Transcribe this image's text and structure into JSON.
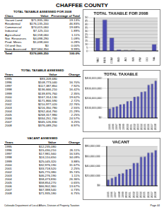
{
  "title": "CHAFFEE COUNTY",
  "tables": [
    {
      "title": "TOTAL TAXABLE ASSESSED FOR 2008",
      "columns": [
        "Class",
        "Value",
        "Percentage of Total"
      ],
      "rows": [
        [
          "Vacant Land",
          "$71,935,180",
          "19.13%"
        ],
        [
          "Residential",
          "$176,135,200",
          "46.83%"
        ],
        [
          "Commercial",
          "$74,015,060",
          "19.68%"
        ],
        [
          "Industrial",
          "$7,125,110",
          "1.89%"
        ],
        [
          "Agricultural",
          "$4,158,060",
          "1.11%"
        ],
        [
          "Nat. Resources",
          "$4,098,290",
          "1.09%"
        ],
        [
          "Prod. Mines",
          "$1,038,000",
          "0.28%"
        ],
        [
          "Oil and Gas",
          "$0",
          "0.00%"
        ],
        [
          "State Assessed",
          "$37,584,350",
          "9.99%"
        ],
        [
          "Total",
          "$376,089,250",
          "100.0%"
        ]
      ]
    },
    {
      "title": "TOTAL TAXABLE ASSESSED",
      "columns": [
        "Years",
        "Value",
        "Change"
      ],
      "rows": [
        [
          "1995",
          "$93,209,680",
          ""
        ],
        [
          "1996",
          "$108,773,040",
          "16.70%"
        ],
        [
          "1997",
          "$117,387,850",
          "7.92%"
        ],
        [
          "1998",
          "$136,666,210",
          "16.42%"
        ],
        [
          "1999",
          "$139,876,760",
          "2.35%"
        ],
        [
          "2000",
          "$167,314,130",
          "19.62%"
        ],
        [
          "2001",
          "$171,866,590",
          "2.72%"
        ],
        [
          "2002",
          "$210,977,020",
          "22.76%"
        ],
        [
          "2003",
          "$216,350,780",
          "2.55%"
        ],
        [
          "2004",
          "$262,404,760",
          "21.29%"
        ],
        [
          "2005",
          "$268,317,980",
          "2.25%"
        ],
        [
          "2006",
          "$334,251,740",
          "24.57%"
        ],
        [
          "2007",
          "$345,126,830",
          "3.25%"
        ],
        [
          "2008",
          "$376,089,250",
          "8.97%"
        ]
      ]
    },
    {
      "title": "VACANT ASSESSED",
      "columns": [
        "Years",
        "Value",
        "Change"
      ],
      "rows": [
        [
          "1995",
          "$12,235,080",
          ""
        ],
        [
          "1996",
          "$15,430,210",
          "26.11%"
        ],
        [
          "1997",
          "$17,981,560",
          "16.53%"
        ],
        [
          "1998",
          "$24,110,650",
          "34.09%"
        ],
        [
          "1999",
          "$25,045,320",
          "3.88%"
        ],
        [
          "2000",
          "$32,976,190",
          "31.67%"
        ],
        [
          "2001",
          "$33,718,520",
          "2.25%"
        ],
        [
          "2002",
          "$45,770,380",
          "35.74%"
        ],
        [
          "2003",
          "$46,276,190",
          "1.11%"
        ],
        [
          "2004",
          "$58,473,830",
          "26.36%"
        ],
        [
          "2005",
          "$58,854,270",
          "0.65%"
        ],
        [
          "2006",
          "$66,902,360",
          "13.67%"
        ],
        [
          "2007",
          "$67,388,540",
          "0.73%"
        ],
        [
          "2008",
          "$71,935,180",
          "6.75%"
        ]
      ]
    }
  ],
  "chart_data": [
    {
      "type": "bar",
      "title": "TOTAL TAXABLE FOR 2008",
      "categories": [
        "VAC",
        "RES",
        "COM",
        "IND",
        "AG",
        "NR",
        "PM",
        "OG",
        "SA"
      ],
      "values": [
        19.13,
        46.83,
        19.68,
        1.89,
        1.11,
        1.09,
        0.28,
        0,
        9.99
      ],
      "color": "#4b4bb0",
      "ylim": [
        0,
        50
      ],
      "yticks": [
        0,
        5,
        10,
        15,
        20,
        25,
        30,
        35,
        40,
        45,
        50
      ],
      "grid": true
    },
    {
      "type": "bar",
      "title": "TOTAL TAXABLE",
      "categories": [
        "1995",
        "1996",
        "1997",
        "1998",
        "1999",
        "2000",
        "2001",
        "2002",
        "2003",
        "2004",
        "2005",
        "2006",
        "2007",
        "2008"
      ],
      "values": [
        93209680,
        108773040,
        117387850,
        136666210,
        139876760,
        167314130,
        171866590,
        210977020,
        216350780,
        262404760,
        268317980,
        334251740,
        345126830,
        376089250
      ],
      "color": "#4b4bb0",
      "ylim": [
        0,
        400000000
      ],
      "yticks": [
        {
          "value": 0,
          "label": "$0"
        },
        {
          "value": 100000000,
          "label": "$100,000,000"
        },
        {
          "value": 200000000,
          "label": "$200,000,000"
        },
        {
          "value": 300000000,
          "label": "$300,000,000"
        },
        {
          "value": 400000000,
          "label": "$400,000,000"
        }
      ],
      "grid": true
    },
    {
      "type": "bar",
      "title": "VACANT",
      "categories": [
        "1995",
        "1996",
        "1997",
        "1998",
        "1999",
        "2000",
        "2001",
        "2002",
        "2003",
        "2004",
        "2005",
        "2006",
        "2007",
        "2008"
      ],
      "values": [
        12235080,
        15430210,
        17981560,
        24110650,
        25045320,
        32976190,
        33718520,
        45770380,
        46276190,
        58473830,
        58854270,
        66902360,
        67388540,
        71935180
      ],
      "color": "#4b4bb0",
      "ylim": [
        0,
        80000000
      ],
      "yticks": [
        {
          "value": 0,
          "label": "$0"
        },
        {
          "value": 20000000,
          "label": "$20,000,000"
        },
        {
          "value": 40000000,
          "label": "$40,000,000"
        },
        {
          "value": 60000000,
          "label": "$60,000,000"
        },
        {
          "value": 80000000,
          "label": "$80,000,000"
        }
      ],
      "grid": true
    }
  ],
  "footer": {
    "source": "Colorado Department of Local Affairs, Division of Property Taxation",
    "page": "Page 44"
  }
}
